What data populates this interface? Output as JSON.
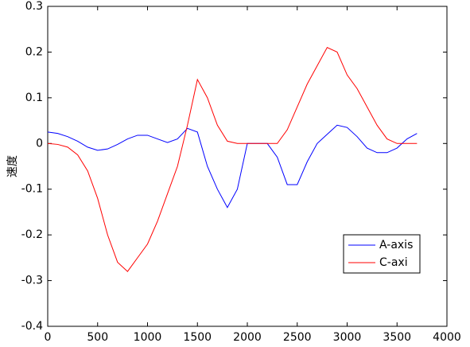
{
  "chart_data": {
    "type": "line",
    "ylabel": "速度",
    "x": [
      0,
      100,
      200,
      300,
      400,
      500,
      600,
      700,
      800,
      900,
      1000,
      1100,
      1200,
      1300,
      1400,
      1500,
      1600,
      1700,
      1800,
      1900,
      2000,
      2100,
      2200,
      2300,
      2400,
      2500,
      2600,
      2700,
      2800,
      2900,
      3000,
      3100,
      3200,
      3300,
      3400,
      3500,
      3600,
      3700
    ],
    "series": [
      {
        "name": "A-axis",
        "color": "#0000ff",
        "values": [
          0.025,
          0.022,
          0.015,
          0.005,
          -0.008,
          -0.015,
          -0.012,
          -0.002,
          0.01,
          0.018,
          0.018,
          0.01,
          0.002,
          0.01,
          0.033,
          0.025,
          -0.05,
          -0.1,
          -0.14,
          -0.1,
          0,
          0,
          0,
          -0.03,
          -0.09,
          -0.09,
          -0.04,
          0,
          0.02,
          0.04,
          0.035,
          0.015,
          -0.01,
          -0.02,
          -0.02,
          -0.01,
          0.01,
          0.022
        ]
      },
      {
        "name": "C-axi",
        "color": "#ff0000",
        "values": [
          0,
          -0.002,
          -0.008,
          -0.025,
          -0.06,
          -0.12,
          -0.2,
          -0.26,
          -0.28,
          -0.25,
          -0.22,
          -0.17,
          -0.11,
          -0.05,
          0.04,
          0.14,
          0.1,
          0.04,
          0.005,
          0,
          0,
          0,
          0,
          0,
          0.03,
          0.08,
          0.13,
          0.17,
          0.21,
          0.2,
          0.15,
          0.12,
          0.08,
          0.04,
          0.01,
          0,
          0,
          0
        ]
      }
    ],
    "xlim": [
      0,
      4000
    ],
    "xticks": [
      0,
      500,
      1000,
      1500,
      2000,
      2500,
      3000,
      3500,
      4000
    ],
    "ylim": [
      -0.4,
      0.3
    ],
    "yticks": [
      -0.4,
      -0.3,
      -0.2,
      -0.1,
      0,
      0.1,
      0.2,
      0.3
    ],
    "legend": "lower right"
  }
}
